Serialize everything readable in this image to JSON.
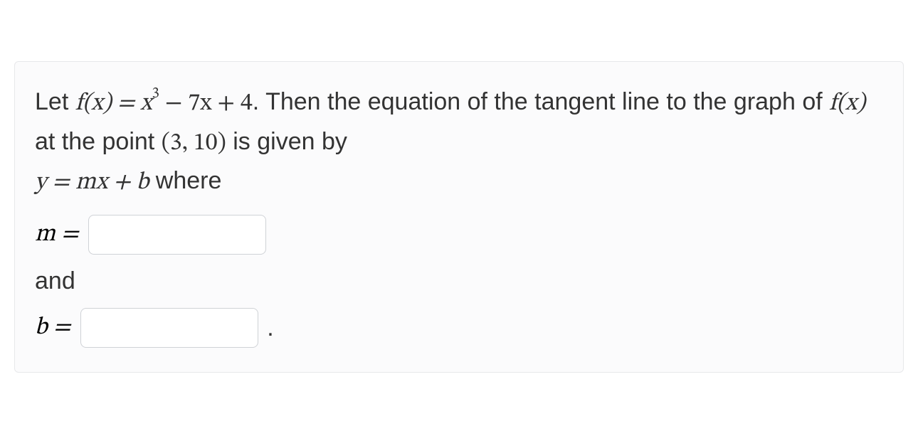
{
  "colors": {
    "card_bg": "#fbfbfc",
    "card_border": "#e7e8ea",
    "text": "#333333",
    "input_border": "#cfd2d6",
    "input_bg": "#ffffff"
  },
  "typography": {
    "body_font": "Helvetica Neue, Helvetica, Arial, sans-serif",
    "math_font": "Cambria Math, STIX Two Math, Latin Modern Math, Georgia, serif",
    "body_fontsize": 34,
    "input_fontsize": 28
  },
  "question": {
    "intro": "Let ",
    "fx_lhs": "f(x) = ",
    "fx_rhs_term1": "x",
    "fx_rhs_exp": "3",
    "fx_rhs_rest": " − 7x + 4",
    "period1": ". ",
    "sentence_mid": "Then the equation of the tangent line to the graph of ",
    "fx2": "f(x)",
    "at_point_pre": " at the point ",
    "point": "(3, 10)",
    "given_by": " is given by",
    "linebreak_eq_pre": "",
    "eq": "y = mx + b",
    "where": " where",
    "m_label": "m = ",
    "and": "and",
    "b_label": "b = ",
    "final_period": "."
  },
  "inputs": {
    "m": {
      "value": "",
      "placeholder": ""
    },
    "b": {
      "value": "",
      "placeholder": ""
    }
  }
}
